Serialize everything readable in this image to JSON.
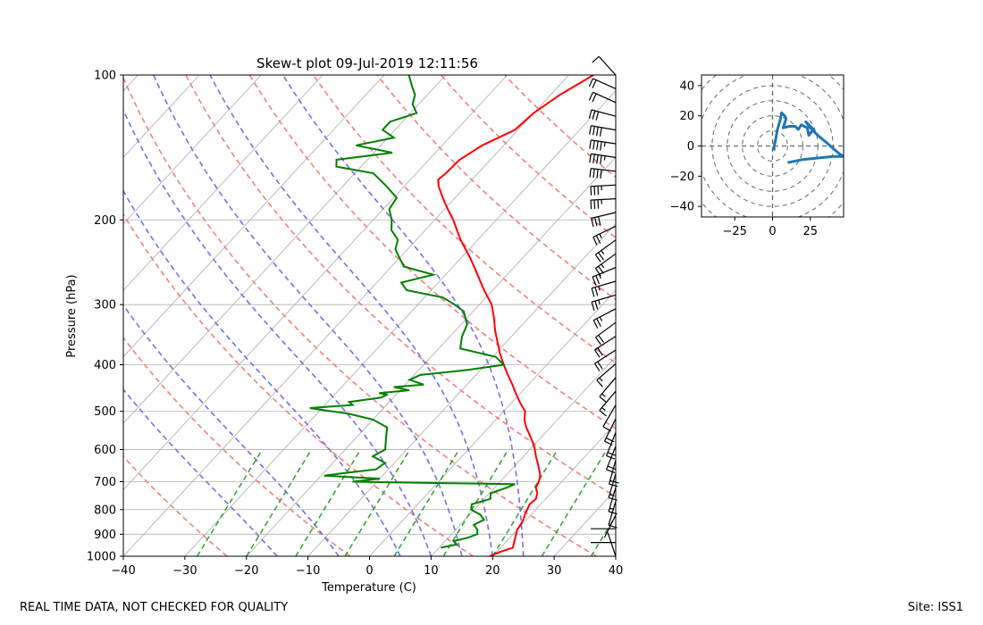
{
  "footer": {
    "left": "REAL TIME DATA, NOT CHECKED FOR QUALITY",
    "right": "Site: ISS1"
  },
  "colors": {
    "temperature": "#ff0000",
    "dewpoint": "#008000",
    "dry_adiabat": "#f08080",
    "moist_adiabat": "#7070f0",
    "mixing_ratio": "#2ca02c",
    "isotherm": "#aaaaaa",
    "hodograph": "#1f77b4"
  },
  "chart_data": [
    {
      "type": "line",
      "kind": "skew-t log-p",
      "title": "Skew-t plot 09-Jul-2019 12:11:56",
      "xlabel": "Temperature (C)",
      "ylabel": "Pressure (hPa)",
      "xlim": [
        -40,
        40
      ],
      "ylim": [
        1000,
        100
      ],
      "yscale": "log",
      "x_ticks": [
        "−40",
        "−30",
        "−20",
        "−10",
        "0",
        "10",
        "20",
        "30",
        "40"
      ],
      "y_ticks": [
        "100",
        "200",
        "300",
        "400",
        "500",
        "600",
        "700",
        "800",
        "900",
        "1000"
      ],
      "grid": true,
      "series": [
        {
          "id": "temperature",
          "points": [
            [
              1000,
              19.5
            ],
            [
              980,
              20.5
            ],
            [
              960,
              22.0
            ],
            [
              940,
              21.5
            ],
            [
              920,
              21.0
            ],
            [
              900,
              20.5
            ],
            [
              880,
              20.0
            ],
            [
              860,
              19.8
            ],
            [
              840,
              19.5
            ],
            [
              820,
              19.0
            ],
            [
              800,
              18.6
            ],
            [
              780,
              18.2
            ],
            [
              760,
              18.4
            ],
            [
              740,
              17.8
            ],
            [
              720,
              16.7
            ],
            [
              700,
              16.3
            ],
            [
              680,
              15.6
            ],
            [
              660,
              14.5
            ],
            [
              640,
              13.3
            ],
            [
              620,
              12.0
            ],
            [
              600,
              10.8
            ],
            [
              580,
              9.4
            ],
            [
              560,
              7.8
            ],
            [
              540,
              6.1
            ],
            [
              520,
              4.6
            ],
            [
              500,
              3.5
            ],
            [
              480,
              1.4
            ],
            [
              460,
              -0.6
            ],
            [
              440,
              -2.6
            ],
            [
              420,
              -4.8
            ],
            [
              400,
              -7.0
            ],
            [
              380,
              -9.2
            ],
            [
              360,
              -11.3
            ],
            [
              340,
              -13.5
            ],
            [
              320,
              -15.6
            ],
            [
              300,
              -18.0
            ],
            [
              280,
              -21.4
            ],
            [
              260,
              -24.8
            ],
            [
              240,
              -28.5
            ],
            [
              220,
              -32.8
            ],
            [
              200,
              -37.0
            ],
            [
              190,
              -39.5
            ],
            [
              180,
              -42.0
            ],
            [
              170,
              -44.5
            ],
            [
              165,
              -45.5
            ],
            [
              160,
              -45.2
            ],
            [
              150,
              -45.0
            ],
            [
              140,
              -43.5
            ],
            [
              130,
              -40.5
            ],
            [
              120,
              -40.0
            ],
            [
              110,
              -38.5
            ],
            [
              100,
              -36.0
            ]
          ]
        },
        {
          "id": "dewpoint",
          "points": [
            [
              960,
              10.3
            ],
            [
              945,
              12.4
            ],
            [
              930,
              11.4
            ],
            [
              915,
              13.2
            ],
            [
              900,
              14.2
            ],
            [
              880,
              13.5
            ],
            [
              860,
              12.2
            ],
            [
              840,
              13.1
            ],
            [
              820,
              11.8
            ],
            [
              800,
              9.5
            ],
            [
              780,
              8.8
            ],
            [
              760,
              11.0
            ],
            [
              740,
              10.2
            ],
            [
              720,
              12.0
            ],
            [
              708,
              12.8
            ],
            [
              705,
              2.0
            ],
            [
              700,
              -14.0
            ],
            [
              690,
              -10.0
            ],
            [
              680,
              -19.5
            ],
            [
              670,
              -16.0
            ],
            [
              660,
              -12.0
            ],
            [
              640,
              -11.5
            ],
            [
              620,
              -14.5
            ],
            [
              600,
              -13.5
            ],
            [
              580,
              -14.5
            ],
            [
              560,
              -15.5
            ],
            [
              540,
              -16.5
            ],
            [
              520,
              -20.0
            ],
            [
              505,
              -25.0
            ],
            [
              498,
              -29.0
            ],
            [
              492,
              -32.0
            ],
            [
              485,
              -25.5
            ],
            [
              478,
              -26.5
            ],
            [
              468,
              -22.0
            ],
            [
              462,
              -21.5
            ],
            [
              458,
              -23.0
            ],
            [
              452,
              -18.5
            ],
            [
              445,
              -21.5
            ],
            [
              440,
              -17.0
            ],
            [
              430,
              -20.0
            ],
            [
              420,
              -19.0
            ],
            [
              410,
              -12.0
            ],
            [
              400,
              -7.0
            ],
            [
              385,
              -9.5
            ],
            [
              370,
              -16.5
            ],
            [
              350,
              -18.0
            ],
            [
              330,
              -19.0
            ],
            [
              310,
              -21.5
            ],
            [
              300,
              -24.0
            ],
            [
              290,
              -27.0
            ],
            [
              280,
              -34.0
            ],
            [
              270,
              -36.0
            ],
            [
              260,
              -32.0
            ],
            [
              250,
              -38.0
            ],
            [
              240,
              -40.0
            ],
            [
              230,
              -42.0
            ],
            [
              220,
              -43.0
            ],
            [
              210,
              -45.5
            ],
            [
              200,
              -47.0
            ],
            [
              190,
              -49.0
            ],
            [
              180,
              -49.5
            ],
            [
              170,
              -53.0
            ],
            [
              160,
              -57.0
            ],
            [
              155,
              -64.0
            ],
            [
              150,
              -65.0
            ],
            [
              145,
              -57.0
            ],
            [
              140,
              -64.0
            ],
            [
              135,
              -59.0
            ],
            [
              130,
              -62.0
            ],
            [
              125,
              -62.0
            ],
            [
              120,
              -59.0
            ],
            [
              115,
              -61.0
            ],
            [
              110,
              -62.0
            ],
            [
              105,
              -64.0
            ],
            [
              100,
              -66.0
            ]
          ]
        }
      ],
      "dry_adiabats_theta_K": [
        230,
        250,
        270,
        290,
        310,
        330,
        350,
        370,
        390,
        410,
        430
      ],
      "moist_adiabats_start_C": [
        -15,
        -5,
        5,
        10,
        15,
        20,
        25
      ],
      "mixing_ratio_lines_C_at_1000": [
        -28,
        -20,
        -12,
        -4,
        4,
        12,
        20,
        28,
        36
      ],
      "mixing_ratio_top_hPa": 600
    },
    {
      "type": "line",
      "kind": "hodograph",
      "xlim": [
        -47,
        47
      ],
      "ylim": [
        -47,
        47
      ],
      "x_ticks": [
        "−25",
        "0",
        "25"
      ],
      "y_ticks": [
        "40",
        "20",
        "0",
        "−20",
        "−40"
      ],
      "range_ring_step": 10,
      "series": [
        {
          "id": "wind",
          "points": [
            [
              10,
              -11
            ],
            [
              20,
              -9
            ],
            [
              30,
              -8
            ],
            [
              40,
              -7
            ],
            [
              47,
              -7
            ],
            [
              44,
              -5
            ],
            [
              36,
              2
            ],
            [
              30,
              7
            ],
            [
              25,
              12
            ],
            [
              22,
              16
            ],
            [
              27,
              11
            ],
            [
              24,
              7
            ],
            [
              23,
              12
            ],
            [
              19,
              14
            ],
            [
              17,
              11
            ],
            [
              15,
              13
            ],
            [
              11,
              13
            ],
            [
              7,
              12
            ],
            [
              9,
              18
            ],
            [
              8,
              20
            ],
            [
              6,
              22
            ],
            [
              5,
              17
            ],
            [
              3,
              10
            ],
            [
              2,
              4
            ],
            [
              1,
              0
            ],
            [
              1,
              -3
            ]
          ]
        }
      ]
    }
  ]
}
